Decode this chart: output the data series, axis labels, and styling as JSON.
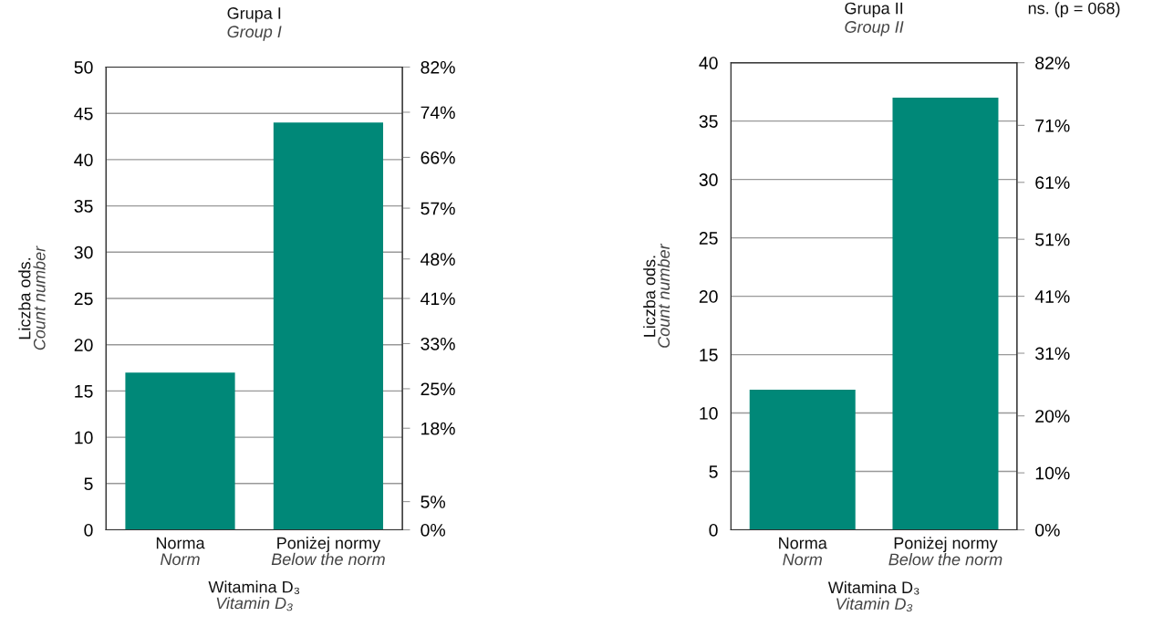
{
  "chart_data": [
    {
      "type": "bar",
      "title": "Grupa I\nGroup I",
      "ylabel": "Liczba ods.\nCount number",
      "xlabel": "Witamina D₃\nVitamin D₃",
      "categories": [
        "Norma\nNorm",
        "Poniżej normy\nBelow the norm"
      ],
      "values": [
        17,
        44
      ],
      "color": "#008878",
      "ylim": [
        0,
        50
      ],
      "yticks": [
        0,
        5,
        10,
        15,
        20,
        25,
        30,
        35,
        40,
        45,
        50
      ],
      "y2lim": [
        0,
        82
      ],
      "y2ticks": [
        {
          "value": 0,
          "label": "0%"
        },
        {
          "value": 5,
          "label": "5%"
        },
        {
          "value": 18,
          "label": "18%"
        },
        {
          "value": 25,
          "label": "25%"
        },
        {
          "value": 33,
          "label": "33%"
        },
        {
          "value": 41,
          "label": "41%"
        },
        {
          "value": 48,
          "label": "48%"
        },
        {
          "value": 57,
          "label": "57%"
        },
        {
          "value": 66,
          "label": "66%"
        },
        {
          "value": 74,
          "label": "74%"
        },
        {
          "value": 82,
          "label": "82%"
        }
      ],
      "grid": "y"
    },
    {
      "type": "bar",
      "title": "Grupa II\nGroup II",
      "ylabel": "Liczba ods.\nCount number",
      "xlabel": "Witamina D₃\nVitamin D₃",
      "categories": [
        "Norma\nNorm",
        "Poniżej normy\nBelow the norm"
      ],
      "values": [
        12,
        37
      ],
      "color": "#008878",
      "ylim": [
        0,
        40
      ],
      "yticks": [
        0,
        5,
        10,
        15,
        20,
        25,
        30,
        35,
        40
      ],
      "y2lim": [
        0,
        82
      ],
      "y2ticks": [
        {
          "value": 0,
          "label": "0%"
        },
        {
          "value": 10,
          "label": "10%"
        },
        {
          "value": 20,
          "label": "20%"
        },
        {
          "value": 31,
          "label": "31%"
        },
        {
          "value": 41,
          "label": "41%"
        },
        {
          "value": 51,
          "label": "51%"
        },
        {
          "value": 61,
          "label": "61%"
        },
        {
          "value": 71,
          "label": "71%"
        },
        {
          "value": 82,
          "label": "82%"
        }
      ],
      "grid": "y",
      "annotations": [
        "ns. (p = 068)"
      ]
    }
  ]
}
